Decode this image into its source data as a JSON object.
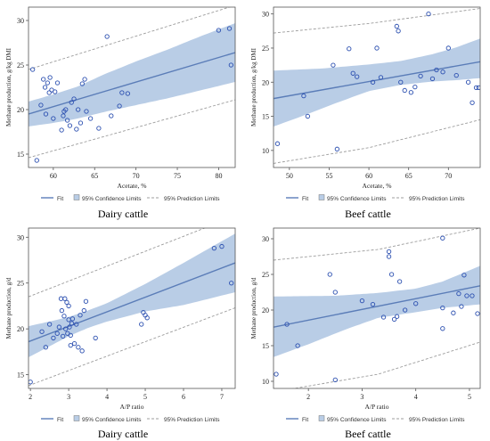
{
  "captions": {
    "top_left": "Dairy cattle",
    "top_right": "Beef cattle",
    "bottom_left": "Dairy cattle",
    "bottom_right": "Beef cattle"
  },
  "legend": {
    "fit": "Fit",
    "confidence": "95% Confidence Limits",
    "prediction": "95% Prediction Limits"
  },
  "colors": {
    "fit_line": "#5b7db8",
    "confidence_band": "#b9cde6",
    "prediction_line": "#9c9c9c",
    "points": "#2b4fb0"
  },
  "chart_data": [
    {
      "id": "dairy-acetate",
      "type": "scatter",
      "xlabel": "Acetate, %",
      "ylabel": "Methane production, g/kg DMI",
      "xlim": [
        57,
        82
      ],
      "ylim": [
        13.5,
        31.5
      ],
      "xticks": [
        60,
        65,
        70,
        75,
        80
      ],
      "yticks": [
        15,
        20,
        25,
        30
      ],
      "points": [
        [
          57.5,
          24.5
        ],
        [
          58.0,
          14.3
        ],
        [
          58.5,
          20.5
        ],
        [
          58.8,
          23.4
        ],
        [
          59.0,
          22.5
        ],
        [
          59.1,
          19.5
        ],
        [
          59.3,
          23.0
        ],
        [
          59.5,
          21.9
        ],
        [
          59.6,
          23.6
        ],
        [
          59.8,
          22.2
        ],
        [
          60.0,
          19.0
        ],
        [
          60.2,
          22.0
        ],
        [
          60.5,
          23.0
        ],
        [
          61.0,
          17.7
        ],
        [
          61.2,
          19.3
        ],
        [
          61.3,
          19.8
        ],
        [
          61.5,
          20.0
        ],
        [
          61.7,
          18.8
        ],
        [
          62.0,
          18.2
        ],
        [
          62.2,
          20.8
        ],
        [
          62.5,
          21.2
        ],
        [
          62.8,
          17.8
        ],
        [
          63.0,
          20.0
        ],
        [
          63.3,
          18.5
        ],
        [
          63.5,
          22.9
        ],
        [
          63.8,
          23.4
        ],
        [
          64.0,
          19.8
        ],
        [
          64.5,
          19.0
        ],
        [
          65.5,
          17.9
        ],
        [
          66.5,
          28.2
        ],
        [
          67.0,
          19.3
        ],
        [
          68.0,
          20.4
        ],
        [
          68.3,
          21.9
        ],
        [
          69.0,
          21.8
        ],
        [
          80.0,
          28.9
        ],
        [
          81.3,
          29.1
        ],
        [
          81.5,
          25.0
        ]
      ],
      "fit": [
        [
          57,
          19.5
        ],
        [
          82,
          26.4
        ]
      ],
      "confidence_upper": [
        [
          57,
          20.9
        ],
        [
          60,
          21.7
        ],
        [
          63,
          22.6
        ],
        [
          66,
          23.9
        ],
        [
          70,
          25.4
        ],
        [
          74,
          26.8
        ],
        [
          78,
          28.3
        ],
        [
          82,
          29.7
        ]
      ],
      "confidence_lower": [
        [
          57,
          18.1
        ],
        [
          60,
          18.5
        ],
        [
          63,
          19.0
        ],
        [
          66,
          19.7
        ],
        [
          70,
          20.5
        ],
        [
          74,
          21.3
        ],
        [
          78,
          22.2
        ],
        [
          82,
          23.1
        ]
      ],
      "prediction_upper": [
        [
          57,
          24.5
        ],
        [
          82,
          31.7
        ]
      ],
      "prediction_lower": [
        [
          57,
          14.6
        ],
        [
          82,
          21.1
        ]
      ]
    },
    {
      "id": "beef-acetate",
      "type": "scatter",
      "xlabel": "Acetate, %",
      "ylabel": "Methane production, g/kg DMI",
      "xlim": [
        48,
        74
      ],
      "ylim": [
        7.5,
        31
      ],
      "xticks": [
        50,
        55,
        60,
        65,
        70
      ],
      "yticks": [
        10,
        15,
        20,
        25,
        30
      ],
      "points": [
        [
          48.5,
          11.0
        ],
        [
          51.8,
          18.0
        ],
        [
          52.3,
          15.0
        ],
        [
          55.5,
          22.5
        ],
        [
          56.0,
          10.2
        ],
        [
          57.5,
          24.9
        ],
        [
          58.0,
          21.3
        ],
        [
          58.5,
          20.8
        ],
        [
          60.5,
          20.0
        ],
        [
          61.0,
          25.0
        ],
        [
          61.5,
          20.7
        ],
        [
          63.5,
          28.2
        ],
        [
          63.7,
          27.5
        ],
        [
          64.0,
          20.0
        ],
        [
          64.5,
          18.8
        ],
        [
          65.3,
          18.5
        ],
        [
          65.8,
          19.3
        ],
        [
          66.5,
          20.9
        ],
        [
          67.5,
          30.0
        ],
        [
          68.0,
          20.5
        ],
        [
          68.5,
          21.8
        ],
        [
          69.3,
          21.5
        ],
        [
          70.0,
          25.0
        ],
        [
          71.0,
          21.0
        ],
        [
          72.5,
          20.0
        ],
        [
          73.0,
          17.0
        ],
        [
          73.5,
          19.2
        ],
        [
          73.8,
          19.2
        ]
      ],
      "fit": [
        [
          48,
          17.6
        ],
        [
          74,
          23.0
        ]
      ],
      "confidence_upper": [
        [
          48,
          21.7
        ],
        [
          54,
          22.0
        ],
        [
          60,
          22.6
        ],
        [
          64,
          23.1
        ],
        [
          68,
          24.1
        ],
        [
          71,
          25.1
        ],
        [
          74,
          26.4
        ]
      ],
      "confidence_lower": [
        [
          48,
          13.5
        ],
        [
          52,
          15.2
        ],
        [
          56,
          17.0
        ],
        [
          60,
          18.7
        ],
        [
          64,
          19.6
        ],
        [
          68,
          20.1
        ],
        [
          71,
          20.3
        ],
        [
          74,
          20.6
        ]
      ],
      "prediction_upper": [
        [
          48,
          27.2
        ],
        [
          60,
          28.6
        ],
        [
          74,
          30.8
        ]
      ],
      "prediction_lower": [
        [
          48,
          8.1
        ],
        [
          60,
          10.4
        ],
        [
          74,
          14.5
        ]
      ]
    },
    {
      "id": "dairy-ap",
      "type": "scatter",
      "xlabel": "A/P ratio",
      "ylabel": "Methane production, g/d",
      "xlim": [
        1.95,
        7.35
      ],
      "ylim": [
        13.5,
        31
      ],
      "xticks": [
        2,
        3,
        4,
        5,
        6,
        7
      ],
      "yticks": [
        15,
        20,
        25,
        30
      ],
      "points": [
        [
          2.0,
          14.2
        ],
        [
          2.3,
          19.7
        ],
        [
          2.4,
          18.0
        ],
        [
          2.5,
          20.5
        ],
        [
          2.6,
          19.0
        ],
        [
          2.7,
          19.5
        ],
        [
          2.75,
          20.2
        ],
        [
          2.8,
          23.3
        ],
        [
          2.82,
          22.0
        ],
        [
          2.85,
          19.2
        ],
        [
          2.88,
          21.4
        ],
        [
          2.9,
          23.3
        ],
        [
          2.92,
          20.0
        ],
        [
          2.95,
          22.9
        ],
        [
          2.97,
          19.5
        ],
        [
          3.0,
          21.0
        ],
        [
          3.0,
          22.5
        ],
        [
          3.02,
          20.2
        ],
        [
          3.05,
          19.3
        ],
        [
          3.05,
          18.2
        ],
        [
          3.08,
          20.6
        ],
        [
          3.1,
          21.1
        ],
        [
          3.15,
          18.4
        ],
        [
          3.2,
          20.5
        ],
        [
          3.25,
          18.0
        ],
        [
          3.3,
          21.5
        ],
        [
          3.35,
          17.6
        ],
        [
          3.4,
          22.0
        ],
        [
          3.45,
          23.0
        ],
        [
          3.7,
          19.0
        ],
        [
          4.9,
          20.5
        ],
        [
          4.95,
          21.8
        ],
        [
          5.0,
          21.5
        ],
        [
          5.05,
          21.2
        ],
        [
          6.8,
          28.8
        ],
        [
          7.0,
          29.0
        ],
        [
          7.25,
          25.0
        ]
      ],
      "fit": [
        [
          1.95,
          18.6
        ],
        [
          7.35,
          27.2
        ]
      ],
      "confidence_upper": [
        [
          1.95,
          20.3
        ],
        [
          2.5,
          20.8
        ],
        [
          3.0,
          21.3
        ],
        [
          3.5,
          22.0
        ],
        [
          4.0,
          22.8
        ],
        [
          5.0,
          24.9
        ],
        [
          6.0,
          27.2
        ],
        [
          7.35,
          30.4
        ]
      ],
      "confidence_lower": [
        [
          1.95,
          16.9
        ],
        [
          2.5,
          18.1
        ],
        [
          3.0,
          19.2
        ],
        [
          3.5,
          20.1
        ],
        [
          4.0,
          20.8
        ],
        [
          5.0,
          21.9
        ],
        [
          6.0,
          22.6
        ],
        [
          7.35,
          24.0
        ]
      ],
      "prediction_upper": [
        [
          1.95,
          23.5
        ],
        [
          7.35,
          32.3
        ]
      ],
      "prediction_lower": [
        [
          1.95,
          13.8
        ],
        [
          7.35,
          22.3
        ]
      ]
    },
    {
      "id": "beef-ap",
      "type": "scatter",
      "xlabel": "A/P ratio",
      "ylabel": "Methane production, g/d",
      "xlim": [
        1.35,
        5.2
      ],
      "ylim": [
        9,
        31.5
      ],
      "xticks": [
        2,
        3,
        4,
        5
      ],
      "yticks": [
        10,
        15,
        20,
        25,
        30
      ],
      "points": [
        [
          1.4,
          11.0
        ],
        [
          1.6,
          18.0
        ],
        [
          1.8,
          15.0
        ],
        [
          2.4,
          25.0
        ],
        [
          2.5,
          22.5
        ],
        [
          2.5,
          10.2
        ],
        [
          3.0,
          21.3
        ],
        [
          3.2,
          20.8
        ],
        [
          3.4,
          19.0
        ],
        [
          3.5,
          28.2
        ],
        [
          3.5,
          27.5
        ],
        [
          3.55,
          25.0
        ],
        [
          3.6,
          18.7
        ],
        [
          3.65,
          19.1
        ],
        [
          3.7,
          24.0
        ],
        [
          3.8,
          20.0
        ],
        [
          4.0,
          20.9
        ],
        [
          4.5,
          30.1
        ],
        [
          4.5,
          20.3
        ],
        [
          4.5,
          17.4
        ],
        [
          4.7,
          19.6
        ],
        [
          4.8,
          22.3
        ],
        [
          4.85,
          20.5
        ],
        [
          4.9,
          24.9
        ],
        [
          4.95,
          22.0
        ],
        [
          5.05,
          22.0
        ],
        [
          5.15,
          19.5
        ]
      ],
      "fit": [
        [
          1.35,
          17.6
        ],
        [
          5.2,
          23.4
        ]
      ],
      "confidence_upper": [
        [
          1.35,
          21.9
        ],
        [
          2.5,
          22.0
        ],
        [
          3.3,
          22.4
        ],
        [
          4.0,
          23.0
        ],
        [
          4.5,
          24.0
        ],
        [
          5.2,
          26.2
        ]
      ],
      "confidence_lower": [
        [
          1.35,
          13.4
        ],
        [
          2.0,
          15.2
        ],
        [
          2.7,
          17.3
        ],
        [
          3.3,
          18.9
        ],
        [
          4.0,
          19.7
        ],
        [
          4.5,
          20.3
        ],
        [
          5.2,
          20.8
        ]
      ],
      "prediction_upper": [
        [
          1.35,
          27.0
        ],
        [
          3.3,
          28.5
        ],
        [
          5.2,
          31.5
        ]
      ],
      "prediction_lower": [
        [
          1.35,
          8.5
        ],
        [
          3.3,
          11.0
        ],
        [
          5.2,
          15.5
        ]
      ]
    }
  ]
}
